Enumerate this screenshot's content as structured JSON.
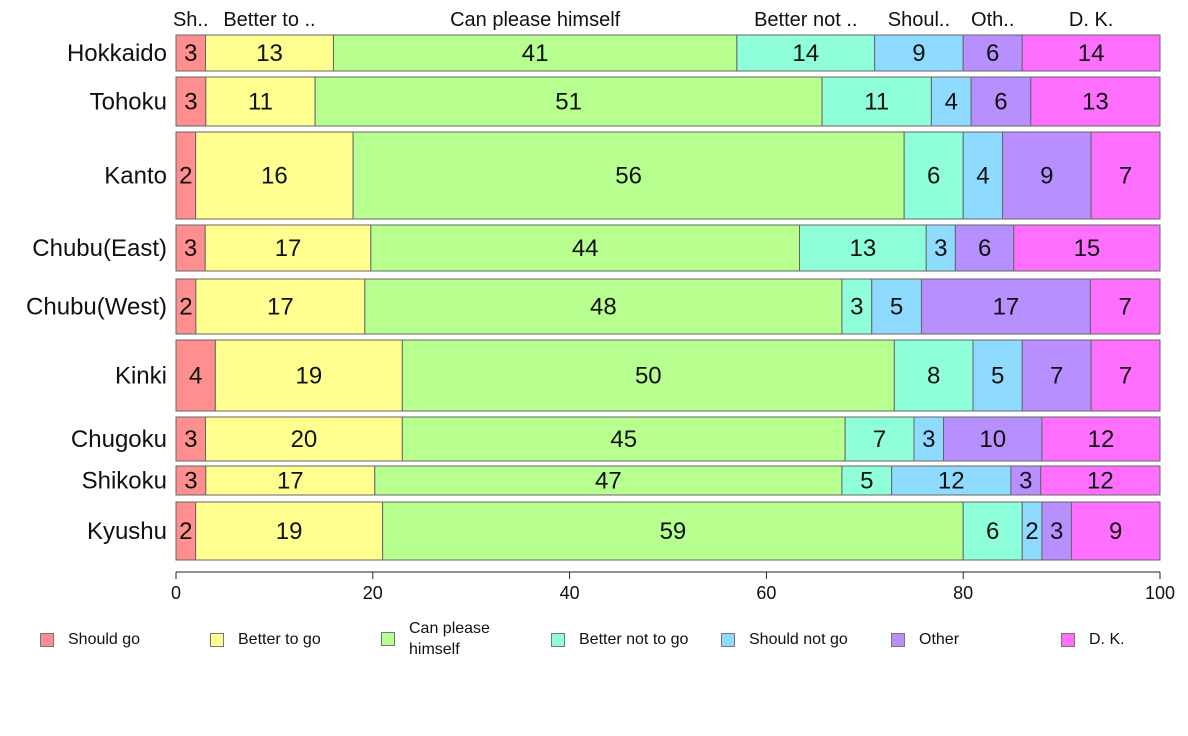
{
  "chart_data": {
    "type": "bar",
    "orientation": "horizontal",
    "stacked": true,
    "categories": [
      "Hokkaido",
      "Tohoku",
      "Kanto",
      "Chubu(East)",
      "Chubu(West)",
      "Kinki",
      "Chugoku",
      "Shikoku",
      "Kyushu"
    ],
    "series": [
      {
        "name": "Should go",
        "values": [
          3,
          3,
          2,
          3,
          2,
          4,
          3,
          3,
          2
        ]
      },
      {
        "name": "Better to go",
        "values": [
          13,
          11,
          16,
          17,
          17,
          19,
          20,
          17,
          19
        ]
      },
      {
        "name": "Can please himself",
        "values": [
          41,
          51,
          56,
          44,
          48,
          50,
          45,
          47,
          59
        ]
      },
      {
        "name": "Better not to go",
        "values": [
          14,
          11,
          6,
          13,
          3,
          8,
          7,
          5,
          6
        ]
      },
      {
        "name": "Should not go",
        "values": [
          9,
          4,
          4,
          3,
          5,
          5,
          3,
          12,
          2
        ]
      },
      {
        "name": "Other",
        "values": [
          6,
          6,
          9,
          6,
          17,
          7,
          10,
          3,
          3
        ]
      },
      {
        "name": "D. K.",
        "values": [
          14,
          13,
          7,
          15,
          7,
          7,
          12,
          12,
          9
        ]
      }
    ],
    "colors": [
      "#FF8F8F",
      "#FFFF8F",
      "#B7FF8F",
      "#8FFFDB",
      "#8FDBFF",
      "#B78FFF",
      "#FF6FFF"
    ],
    "top_labels": [
      "Sh..",
      "Better to ..",
      "Can please himself",
      "Better not ..",
      "Shoul..",
      "Oth..",
      "D. K."
    ],
    "legend_labels": [
      "Should go",
      "Better to go",
      "Can please\nhimself",
      "Better not to go",
      "Should not go",
      "Other",
      "D. K."
    ],
    "xlim": [
      0,
      100
    ],
    "xticks": [
      "0",
      "20",
      "40",
      "60",
      "80",
      "100"
    ],
    "legend_position": "bottom",
    "grid": false
  }
}
